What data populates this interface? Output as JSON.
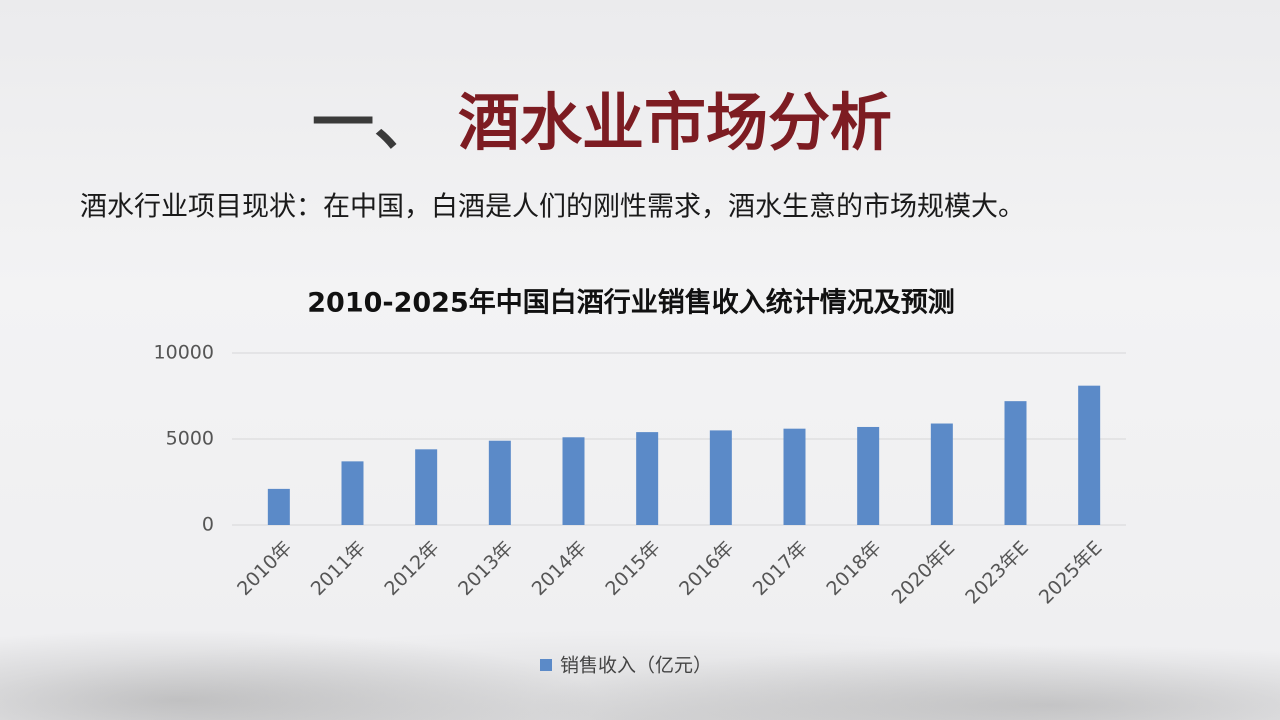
{
  "header": {
    "prefix": "一、",
    "title": "酒水业市场分析",
    "text": "酒水行业项目现状：在中国，白酒是人们的刚性需求，酒水生意的市场规模大。"
  },
  "chart_data": {
    "type": "bar",
    "title": "2010-2025年中国白酒行业销售收入统计情况及预测",
    "categories": [
      "2010年",
      "2011年",
      "2012年",
      "2013年",
      "2014年",
      "2015年",
      "2016年",
      "2017年",
      "2018年",
      "2020年E",
      "2023年E",
      "2025年E"
    ],
    "series": [
      {
        "name": "销售收入（亿元）",
        "color": "#5b8ac8",
        "values": [
          2100,
          3700,
          4400,
          4900,
          5100,
          5400,
          5500,
          5600,
          5700,
          5900,
          7200,
          8100
        ]
      }
    ],
    "ylim": [
      0,
      10000
    ],
    "yticks": [
      0,
      5000,
      10000
    ],
    "grid": true,
    "legend": "bottom"
  }
}
